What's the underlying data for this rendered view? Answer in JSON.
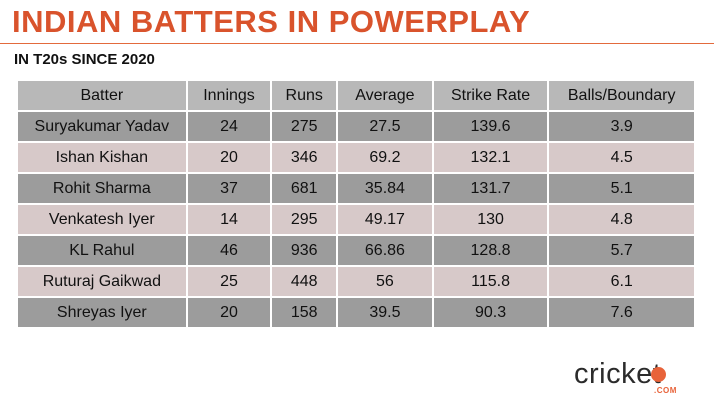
{
  "title": "INDIAN BATTERS IN POWERPLAY",
  "subtitle": "IN T20s SINCE 2020",
  "colors": {
    "title": "#d9532c",
    "header_bg": "#b8b8b8",
    "row_dark": "#9c9c9c",
    "row_light": "#d7c9c9",
    "brand_accent": "#e8633a"
  },
  "table": {
    "headers": [
      "Batter",
      "Innings",
      "Runs",
      "Average",
      "Strike Rate",
      "Balls/Boundary"
    ],
    "rows": [
      [
        "Suryakumar Yadav",
        "24",
        "275",
        "27.5",
        "139.6",
        "3.9"
      ],
      [
        "Ishan Kishan",
        "20",
        "346",
        "69.2",
        "132.1",
        "4.5"
      ],
      [
        "Rohit Sharma",
        "37",
        "681",
        "35.84",
        "131.7",
        "5.1"
      ],
      [
        "Venkatesh Iyer",
        "14",
        "295",
        "49.17",
        "130",
        "4.8"
      ],
      [
        "KL Rahul",
        "46",
        "936",
        "66.86",
        "128.8",
        "5.7"
      ],
      [
        "Ruturaj Gaikwad",
        "25",
        "448",
        "56",
        "115.8",
        "6.1"
      ],
      [
        "Shreyas Iyer",
        "20",
        "158",
        "39.5",
        "90.3",
        "7.6"
      ]
    ]
  },
  "logo": {
    "text": "cricket",
    "suffix": ".COM",
    "icon": "cricket-ball-icon"
  }
}
